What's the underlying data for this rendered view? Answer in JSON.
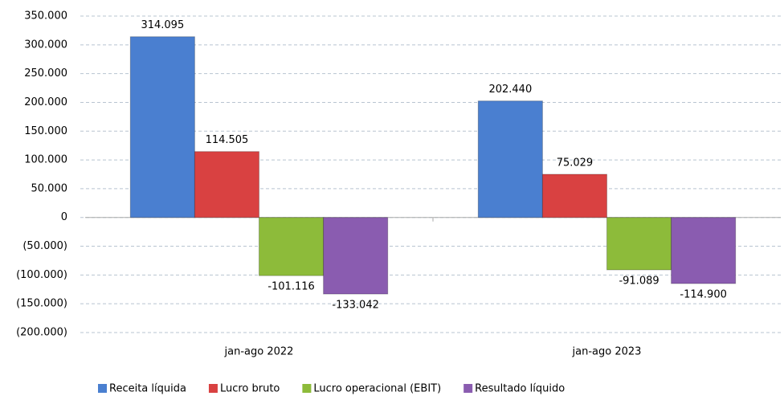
{
  "chart_data": {
    "type": "bar",
    "categories": [
      "jan-ago 2022",
      "jan-ago 2023"
    ],
    "series": [
      {
        "name": "Receita líquida",
        "color": "#4a7fd0",
        "values": [
          314095,
          202440
        ],
        "value_labels": [
          "314.095",
          "202.440"
        ]
      },
      {
        "name": "Lucro bruto",
        "color": "#d94141",
        "values": [
          114505,
          75029
        ],
        "value_labels": [
          "114.505",
          "75.029"
        ]
      },
      {
        "name": "Lucro operacional (EBIT)",
        "color": "#8dbb3a",
        "values": [
          -101116,
          -91089
        ],
        "value_labels": [
          "-101.116",
          "-91.089"
        ]
      },
      {
        "name": "Resultado líquido",
        "color": "#8a5cb0",
        "values": [
          -133042,
          -114900
        ],
        "value_labels": [
          "-133.042",
          "-114.900"
        ]
      }
    ],
    "ylim": [
      -200000,
      350000
    ],
    "yticks": [
      {
        "value": -200000,
        "label": "(200.000)"
      },
      {
        "value": -150000,
        "label": "(150.000)"
      },
      {
        "value": -100000,
        "label": "(100.000)"
      },
      {
        "value": -50000,
        "label": "(50.000)"
      },
      0,
      {
        "value": 50000,
        "label": "50.000"
      },
      {
        "value": 100000,
        "label": "100.000"
      },
      {
        "value": 150000,
        "label": "150.000"
      },
      {
        "value": 200000,
        "label": "200.000"
      },
      {
        "value": 250000,
        "label": "250.000"
      },
      {
        "value": 300000,
        "label": "300.000"
      },
      {
        "value": 350000,
        "label": "350.000"
      }
    ],
    "grid": true,
    "legend": "bottom"
  }
}
